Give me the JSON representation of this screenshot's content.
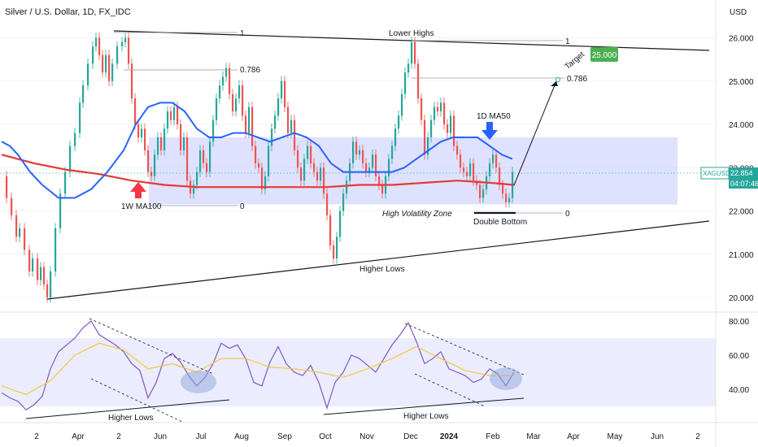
{
  "header": {
    "title": "Silver / U.S. Dollar, 1D, FX_IDC",
    "currency": "USD"
  },
  "price_tag": {
    "symbol": "XAGUSD",
    "price": "22.854",
    "countdown": "04:07:46"
  },
  "target_box": "25.000",
  "chart_data": [
    {
      "type": "line",
      "name": "price_panel",
      "title": "Silver / U.S. Dollar, 1D, FX_IDC",
      "ylim": [
        19.8,
        26.6
      ],
      "yticks": [
        "26.000",
        "25.000",
        "24.000",
        "23.000",
        "22.000",
        "21.000",
        "20.000"
      ],
      "ytick_values": [
        26,
        25,
        24,
        23,
        22,
        21,
        20
      ],
      "xticks": [
        "2",
        "Apr",
        "2",
        "Jun",
        "Jul",
        "Aug",
        "Sep",
        "Oct",
        "Nov",
        "Dec",
        "2024",
        "Feb",
        "Mar",
        "Apr",
        "May",
        "Jun",
        "2"
      ],
      "price_path": [
        [
          0,
          22.8
        ],
        [
          6,
          22.3
        ],
        [
          12,
          21.9
        ],
        [
          18,
          21.4
        ],
        [
          22,
          21.6
        ],
        [
          28,
          21.1
        ],
        [
          34,
          20.6
        ],
        [
          38,
          20.9
        ],
        [
          44,
          20.4
        ],
        [
          48,
          20.7
        ],
        [
          52,
          20.3
        ],
        [
          56,
          20.0
        ],
        [
          60,
          20.6
        ],
        [
          66,
          21.6
        ],
        [
          72,
          22.4
        ],
        [
          78,
          22.9
        ],
        [
          84,
          23.5
        ],
        [
          90,
          23.8
        ],
        [
          96,
          24.5
        ],
        [
          100,
          24.9
        ],
        [
          106,
          25.4
        ],
        [
          112,
          25.8
        ],
        [
          116,
          26.0
        ],
        [
          120,
          25.6
        ],
        [
          124,
          25.2
        ],
        [
          128,
          25.6
        ],
        [
          132,
          25.0
        ],
        [
          136,
          25.4
        ],
        [
          142,
          25.8
        ],
        [
          148,
          25.9
        ],
        [
          152,
          26.0
        ],
        [
          156,
          25.4
        ],
        [
          160,
          24.6
        ],
        [
          164,
          24.0
        ],
        [
          168,
          23.7
        ],
        [
          172,
          23.9
        ],
        [
          176,
          23.4
        ],
        [
          180,
          22.9
        ],
        [
          184,
          22.8
        ],
        [
          188,
          23.3
        ],
        [
          192,
          23.7
        ],
        [
          196,
          23.4
        ],
        [
          200,
          23.9
        ],
        [
          204,
          24.3
        ],
        [
          208,
          24.1
        ],
        [
          212,
          24.4
        ],
        [
          216,
          24.0
        ],
        [
          220,
          23.4
        ],
        [
          224,
          23.7
        ],
        [
          228,
          22.7
        ],
        [
          232,
          22.4
        ],
        [
          236,
          22.6
        ],
        [
          240,
          22.9
        ],
        [
          244,
          23.4
        ],
        [
          248,
          23.1
        ],
        [
          252,
          22.9
        ],
        [
          256,
          23.6
        ],
        [
          260,
          24.1
        ],
        [
          264,
          24.6
        ],
        [
          268,
          24.9
        ],
        [
          272,
          25.1
        ],
        [
          276,
          25.3
        ],
        [
          280,
          24.7
        ],
        [
          284,
          24.3
        ],
        [
          288,
          24.6
        ],
        [
          292,
          24.9
        ],
        [
          296,
          24.2
        ],
        [
          300,
          23.8
        ],
        [
          304,
          24.4
        ],
        [
          308,
          23.5
        ],
        [
          312,
          23.1
        ],
        [
          316,
          23.0
        ],
        [
          320,
          22.5
        ],
        [
          324,
          22.8
        ],
        [
          328,
          23.5
        ],
        [
          332,
          23.9
        ],
        [
          336,
          24.2
        ],
        [
          340,
          24.6
        ],
        [
          344,
          25.0
        ],
        [
          348,
          24.4
        ],
        [
          352,
          23.8
        ],
        [
          356,
          24.1
        ],
        [
          360,
          23.4
        ],
        [
          364,
          23.0
        ],
        [
          368,
          22.7
        ],
        [
          372,
          23.2
        ],
        [
          376,
          23.5
        ],
        [
          380,
          23.1
        ],
        [
          384,
          22.9
        ],
        [
          388,
          22.7
        ],
        [
          392,
          23.0
        ],
        [
          396,
          22.4
        ],
        [
          400,
          21.9
        ],
        [
          404,
          21.2
        ],
        [
          408,
          20.9
        ],
        [
          412,
          21.4
        ],
        [
          416,
          22.0
        ],
        [
          420,
          22.4
        ],
        [
          424,
          22.7
        ],
        [
          428,
          23.1
        ],
        [
          432,
          23.6
        ],
        [
          436,
          23.3
        ],
        [
          440,
          23.4
        ],
        [
          444,
          23.1
        ],
        [
          448,
          22.9
        ],
        [
          452,
          23.0
        ],
        [
          456,
          23.3
        ],
        [
          460,
          22.8
        ],
        [
          464,
          22.6
        ],
        [
          468,
          22.4
        ],
        [
          472,
          22.8
        ],
        [
          476,
          23.2
        ],
        [
          480,
          23.5
        ],
        [
          484,
          23.9
        ],
        [
          488,
          24.2
        ],
        [
          492,
          24.7
        ],
        [
          496,
          25.2
        ],
        [
          500,
          25.4
        ],
        [
          504,
          25.9
        ],
        [
          508,
          25.4
        ],
        [
          512,
          24.6
        ],
        [
          516,
          24.1
        ],
        [
          520,
          23.3
        ],
        [
          524,
          23.7
        ],
        [
          528,
          24.1
        ],
        [
          532,
          24.4
        ],
        [
          536,
          24.3
        ],
        [
          540,
          24.5
        ],
        [
          544,
          24.0
        ],
        [
          548,
          23.8
        ],
        [
          552,
          24.2
        ],
        [
          556,
          23.5
        ],
        [
          560,
          23.3
        ],
        [
          564,
          23.0
        ],
        [
          568,
          22.9
        ],
        [
          572,
          22.8
        ],
        [
          576,
          23.1
        ],
        [
          580,
          22.7
        ],
        [
          584,
          22.6
        ],
        [
          588,
          22.3
        ],
        [
          592,
          22.5
        ],
        [
          596,
          22.8
        ],
        [
          600,
          23.1
        ],
        [
          604,
          23.3
        ],
        [
          608,
          23.0
        ],
        [
          612,
          22.6
        ],
        [
          616,
          22.4
        ],
        [
          620,
          22.2
        ],
        [
          624,
          22.3
        ],
        [
          628,
          22.9
        ]
      ],
      "ma100_1w": [
        [
          0,
          23.3
        ],
        [
          40,
          23.1
        ],
        [
          80,
          22.95
        ],
        [
          120,
          22.85
        ],
        [
          160,
          22.7
        ],
        [
          200,
          22.6
        ],
        [
          240,
          22.55
        ],
        [
          280,
          22.55
        ],
        [
          320,
          22.55
        ],
        [
          360,
          22.55
        ],
        [
          400,
          22.55
        ],
        [
          440,
          22.6
        ],
        [
          480,
          22.6
        ],
        [
          520,
          22.65
        ],
        [
          560,
          22.7
        ],
        [
          600,
          22.65
        ],
        [
          630,
          22.6
        ]
      ],
      "ma50_1d": [
        [
          0,
          23.6
        ],
        [
          10,
          23.5
        ],
        [
          20,
          23.3
        ],
        [
          35,
          22.9
        ],
        [
          50,
          22.6
        ],
        [
          70,
          22.3
        ],
        [
          90,
          22.3
        ],
        [
          110,
          22.5
        ],
        [
          130,
          22.9
        ],
        [
          150,
          23.4
        ],
        [
          165,
          24.0
        ],
        [
          180,
          24.4
        ],
        [
          195,
          24.5
        ],
        [
          210,
          24.5
        ],
        [
          225,
          24.3
        ],
        [
          240,
          23.9
        ],
        [
          255,
          23.7
        ],
        [
          270,
          23.7
        ],
        [
          285,
          23.8
        ],
        [
          300,
          23.8
        ],
        [
          315,
          23.7
        ],
        [
          330,
          23.6
        ],
        [
          345,
          23.7
        ],
        [
          360,
          23.8
        ],
        [
          375,
          23.7
        ],
        [
          390,
          23.5
        ],
        [
          405,
          23.1
        ],
        [
          420,
          22.9
        ],
        [
          435,
          22.9
        ],
        [
          450,
          22.9
        ],
        [
          465,
          22.9
        ],
        [
          480,
          22.9
        ],
        [
          495,
          23.0
        ],
        [
          510,
          23.2
        ],
        [
          525,
          23.4
        ],
        [
          540,
          23.6
        ],
        [
          555,
          23.7
        ],
        [
          570,
          23.7
        ],
        [
          585,
          23.7
        ],
        [
          600,
          23.5
        ],
        [
          615,
          23.3
        ],
        [
          628,
          23.2
        ]
      ],
      "annotations": {
        "lower_highs": "Lower Highs",
        "higher_lows": "Higher Lows",
        "high_vol_zone": "High Volatility Zone",
        "double_bottom": "Double Bottom",
        "ma50_label": "1D MA50",
        "ma100_label": "1W MA100",
        "target": "Target",
        "fib_1": "1",
        "fib_0786": "0.786",
        "fib_0": "0"
      }
    },
    {
      "type": "line",
      "name": "rsi_panel",
      "ylim": [
        20,
        85
      ],
      "yticks": [
        "80.00",
        "60.00",
        "40.00"
      ],
      "ytick_values": [
        80,
        60,
        40
      ],
      "band": [
        30,
        70
      ],
      "rsi": [
        [
          0,
          38
        ],
        [
          10,
          35
        ],
        [
          20,
          33
        ],
        [
          30,
          28
        ],
        [
          40,
          31
        ],
        [
          50,
          36
        ],
        [
          60,
          52
        ],
        [
          70,
          62
        ],
        [
          80,
          66
        ],
        [
          90,
          70
        ],
        [
          100,
          76
        ],
        [
          110,
          80
        ],
        [
          120,
          72
        ],
        [
          130,
          69
        ],
        [
          140,
          66
        ],
        [
          150,
          62
        ],
        [
          160,
          55
        ],
        [
          170,
          51
        ],
        [
          180,
          35
        ],
        [
          190,
          44
        ],
        [
          200,
          58
        ],
        [
          210,
          61
        ],
        [
          220,
          56
        ],
        [
          230,
          48
        ],
        [
          240,
          42
        ],
        [
          250,
          47
        ],
        [
          260,
          55
        ],
        [
          270,
          67
        ],
        [
          280,
          64
        ],
        [
          290,
          66
        ],
        [
          300,
          58
        ],
        [
          310,
          44
        ],
        [
          320,
          42
        ],
        [
          330,
          56
        ],
        [
          340,
          65
        ],
        [
          350,
          55
        ],
        [
          360,
          50
        ],
        [
          370,
          48
        ],
        [
          380,
          54
        ],
        [
          390,
          44
        ],
        [
          400,
          29
        ],
        [
          410,
          44
        ],
        [
          420,
          50
        ],
        [
          430,
          60
        ],
        [
          440,
          58
        ],
        [
          450,
          54
        ],
        [
          460,
          50
        ],
        [
          470,
          58
        ],
        [
          480,
          66
        ],
        [
          490,
          72
        ],
        [
          500,
          79
        ],
        [
          510,
          68
        ],
        [
          520,
          55
        ],
        [
          530,
          58
        ],
        [
          540,
          62
        ],
        [
          550,
          52
        ],
        [
          560,
          50
        ],
        [
          570,
          48
        ],
        [
          580,
          44
        ],
        [
          590,
          46
        ],
        [
          600,
          52
        ],
        [
          610,
          49
        ],
        [
          620,
          42
        ],
        [
          630,
          50
        ]
      ],
      "rsi_ma": [
        [
          0,
          42
        ],
        [
          30,
          37
        ],
        [
          60,
          45
        ],
        [
          90,
          60
        ],
        [
          120,
          67
        ],
        [
          150,
          63
        ],
        [
          180,
          52
        ],
        [
          210,
          55
        ],
        [
          240,
          50
        ],
        [
          270,
          58
        ],
        [
          300,
          58
        ],
        [
          330,
          53
        ],
        [
          360,
          52
        ],
        [
          390,
          50
        ],
        [
          420,
          47
        ],
        [
          450,
          52
        ],
        [
          480,
          58
        ],
        [
          510,
          65
        ],
        [
          540,
          58
        ],
        [
          570,
          51
        ],
        [
          600,
          48
        ],
        [
          630,
          48
        ]
      ],
      "annotations": {
        "higher_lows": "Higher Lows"
      }
    }
  ],
  "colors": {
    "price_up": "#26a69a",
    "price_down": "#ef5350",
    "ma50": "#2962ff",
    "ma100": "#e53935",
    "zone": "#c5cbff",
    "rsi": "#7e57c2",
    "rsi_ma": "#f5c542",
    "target_box": "#4caf50",
    "arrow_blue": "#2962ff",
    "arrow_red": "#f23645",
    "price_label": "#26a69a"
  }
}
